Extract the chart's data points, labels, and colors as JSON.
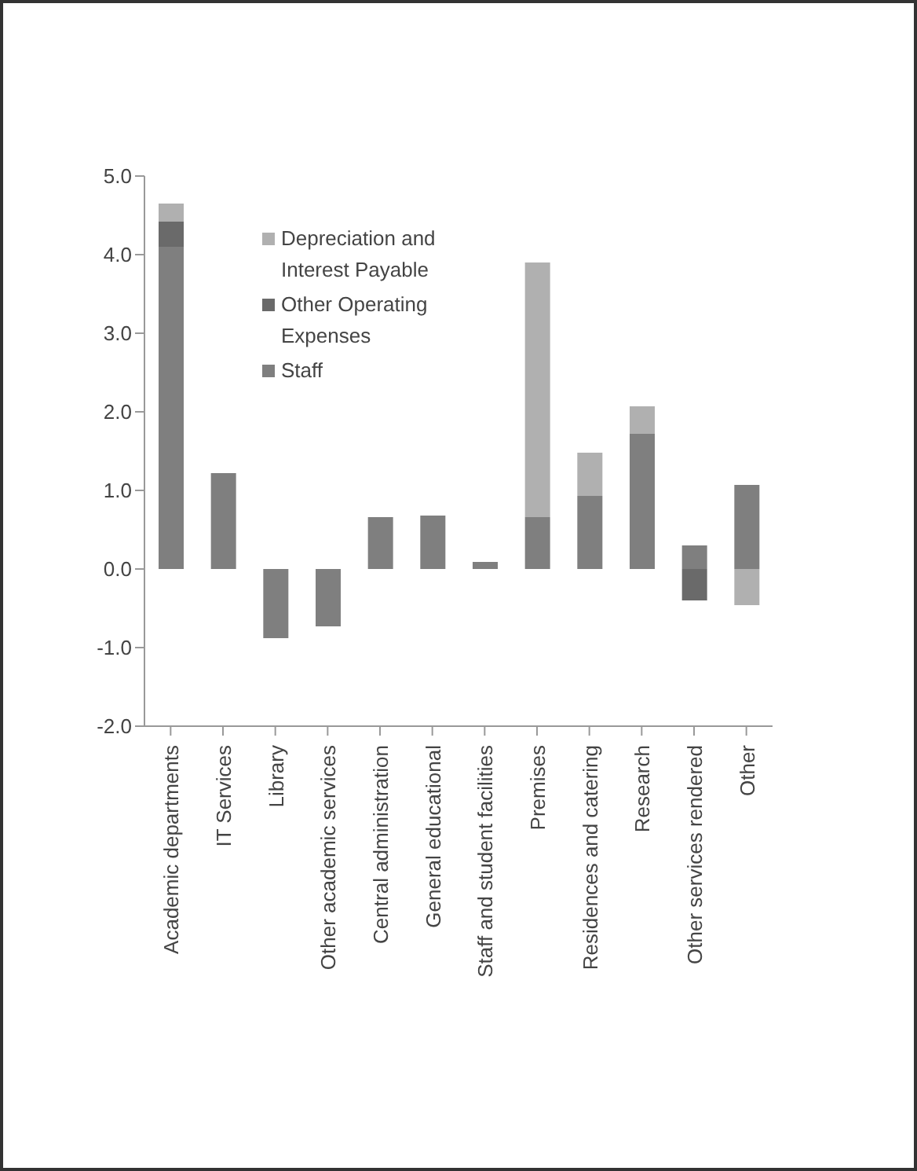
{
  "chart_data": {
    "type": "bar",
    "stacked": true,
    "categories": [
      "Academic departments",
      "IT Services",
      "Library",
      "Other academic services",
      "Central administration",
      "General educational",
      "Staff and student facilities",
      "Premises",
      "Residences and catering",
      "Research",
      "Other services rendered",
      "Other"
    ],
    "series": [
      {
        "name": "Staff",
        "color": "#7f7f7f",
        "values": [
          4.1,
          1.22,
          -0.88,
          -0.73,
          0.66,
          0.68,
          0.09,
          0.66,
          0.93,
          1.72,
          0.3,
          1.07
        ]
      },
      {
        "name": "Other Operating Expenses",
        "color": "#6a6a6a",
        "values": [
          0.32,
          null,
          null,
          null,
          null,
          null,
          null,
          null,
          null,
          null,
          -0.4,
          null
        ]
      },
      {
        "name": "Depreciation and Interest Payable",
        "color": "#b0b0b0",
        "values": [
          0.23,
          null,
          null,
          null,
          null,
          null,
          null,
          3.24,
          0.55,
          0.35,
          null,
          -0.46
        ]
      }
    ],
    "ylim": [
      -2,
      5
    ],
    "yticks": [
      {
        "value": -2,
        "label": "-2.0"
      },
      {
        "value": -1,
        "label": "-1.0"
      },
      {
        "value": 0,
        "label": "0.0"
      },
      {
        "value": 1,
        "label": "1.0"
      },
      {
        "value": 2,
        "label": "2.0"
      },
      {
        "value": 3,
        "label": "3.0"
      },
      {
        "value": 4,
        "label": "4.0"
      },
      {
        "value": 5,
        "label": "5.0"
      }
    ],
    "grid": false,
    "legend": "top left"
  }
}
